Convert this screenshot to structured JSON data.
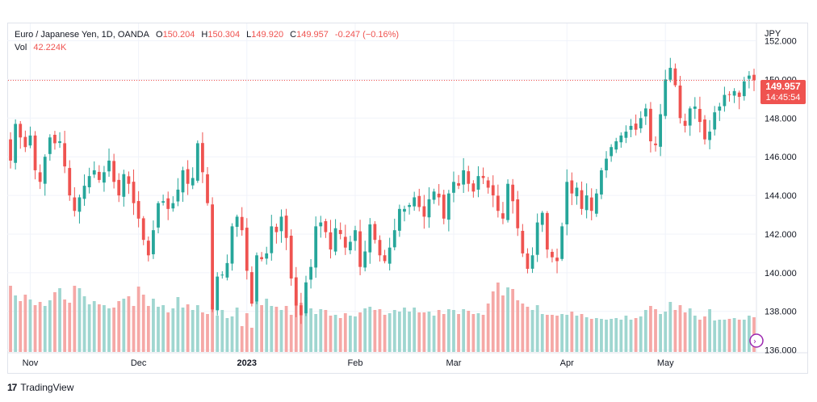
{
  "legend": {
    "symbol": "Euro / Japanese Yen, 1D, OANDA",
    "open_label": "O",
    "open": "150.204",
    "high_label": "H",
    "high": "150.304",
    "low_label": "L",
    "low": "149.920",
    "close_label": "C",
    "close": "149.957",
    "change": "-0.247 (−0.16%)",
    "vol_label": "Vol",
    "vol": "42.224K"
  },
  "currency": "JPY",
  "last_price": "149.957",
  "countdown": "14:45:54",
  "footer": {
    "brand": "TradingView"
  },
  "colors": {
    "up": "#26a69a",
    "down": "#ef5350",
    "vol_up": "#9fd6d0",
    "vol_down": "#f5a8a6"
  },
  "chart_data": {
    "type": "candlestick",
    "title": "Euro / Japanese Yen, 1D, OANDA",
    "y_tick_labels": [
      "136.000",
      "138.000",
      "140.000",
      "142.000",
      "144.000",
      "146.000",
      "148.000",
      "150.000",
      "152.000"
    ],
    "y_ticks": [
      136,
      138,
      140,
      142,
      144,
      146,
      148,
      150,
      152
    ],
    "ylim": [
      135.9,
      152.9
    ],
    "x_tick_labels": [
      {
        "label": "Nov",
        "date": "2022-11-01"
      },
      {
        "label": "Dec",
        "date": "2022-12-01"
      },
      {
        "label": "2023",
        "date": "2023-01-02"
      },
      {
        "label": "Feb",
        "date": "2023-02-01"
      },
      {
        "label": "Mar",
        "date": "2023-03-01"
      },
      {
        "label": "Apr",
        "date": "2023-04-03"
      },
      {
        "label": "May",
        "date": "2023-05-01"
      }
    ],
    "grid": true,
    "current_price_line": 149.957,
    "close": [
      145.8,
      147.7,
      147.0,
      146.5,
      147.1,
      145.3,
      144.7,
      146.0,
      147.0,
      146.7,
      146.8,
      145.5,
      144.0,
      143.2,
      143.9,
      144.5,
      145.0,
      145.3,
      144.8,
      145.2,
      145.8,
      144.7,
      144.0,
      145.1,
      144.6,
      143.6,
      142.8,
      141.7,
      140.9,
      142.2,
      143.6,
      143.7,
      143.3,
      143.6,
      144.3,
      145.3,
      144.6,
      144.9,
      146.7,
      145.2,
      143.6,
      138.1,
      139.8,
      139.9,
      140.5,
      142.4,
      142.9,
      142.2,
      140.1,
      138.4,
      140.9,
      140.7,
      141.0,
      142.4,
      142.1,
      142.9,
      141.8,
      139.7,
      138.3,
      137.8,
      139.5,
      140.3,
      142.4,
      142.6,
      142.1,
      141.2,
      142.3,
      142.0,
      141.3,
      141.6,
      142.2,
      140.3,
      141.1,
      142.5,
      141.7,
      140.9,
      140.6,
      141.3,
      142.2,
      143.3,
      143.3,
      143.5,
      143.9,
      143.4,
      142.9,
      143.8,
      144.2,
      143.9,
      142.8,
      144.1,
      144.7,
      144.5,
      145.3,
      144.6,
      144.2,
      145.0,
      144.9,
      144.4,
      144.0,
      143.2,
      142.8,
      144.6,
      143.7,
      142.3,
      141.0,
      140.2,
      140.9,
      142.6,
      143.1,
      141.2,
      140.8,
      140.6,
      142.4,
      144.7,
      144.1,
      144.4,
      143.3,
      144.0,
      143.2,
      144.1,
      145.3,
      145.9,
      146.5,
      146.8,
      147.1,
      147.3,
      147.6,
      147.4,
      148.0,
      148.5,
      146.8,
      146.6,
      148.2,
      150.0,
      150.6,
      149.7,
      148.0,
      147.6,
      148.5,
      148.6,
      147.8,
      146.9,
      147.3,
      148.3,
      148.6,
      149.2,
      149.2,
      149.4,
      149.1,
      149.9,
      150.2,
      149.957
    ],
    "volume_relative": [
      0.82,
      0.7,
      0.63,
      0.71,
      0.65,
      0.58,
      0.62,
      0.57,
      0.64,
      0.74,
      0.79,
      0.65,
      0.61,
      0.82,
      0.79,
      0.69,
      0.59,
      0.63,
      0.59,
      0.58,
      0.54,
      0.55,
      0.63,
      0.66,
      0.69,
      0.57,
      0.81,
      0.71,
      0.57,
      0.66,
      0.56,
      0.58,
      0.49,
      0.54,
      0.68,
      0.55,
      0.59,
      0.52,
      0.58,
      0.49,
      0.47,
      0.59,
      0.45,
      0.52,
      0.42,
      0.44,
      0.55,
      0.32,
      0.48,
      0.3,
      0.63,
      0.58,
      0.66,
      0.57,
      0.56,
      0.52,
      0.57,
      0.46,
      0.77,
      0.61,
      0.68,
      0.54,
      0.47,
      0.53,
      0.52,
      0.45,
      0.46,
      0.42,
      0.48,
      0.45,
      0.44,
      0.49,
      0.54,
      0.56,
      0.52,
      0.53,
      0.46,
      0.48,
      0.52,
      0.5,
      0.55,
      0.5,
      0.55,
      0.49,
      0.49,
      0.5,
      0.45,
      0.52,
      0.47,
      0.53,
      0.52,
      0.47,
      0.53,
      0.51,
      0.47,
      0.48,
      0.46,
      0.6,
      0.75,
      0.86,
      0.7,
      0.8,
      0.78,
      0.64,
      0.6,
      0.56,
      0.52,
      0.58,
      0.47,
      0.46,
      0.46,
      0.45,
      0.47,
      0.46,
      0.5,
      0.45,
      0.47,
      0.43,
      0.41,
      0.42,
      0.41,
      0.4,
      0.41,
      0.42,
      0.4,
      0.45,
      0.4,
      0.42,
      0.44,
      0.52,
      0.57,
      0.53,
      0.47,
      0.5,
      0.62,
      0.52,
      0.58,
      0.49,
      0.54,
      0.45,
      0.4,
      0.44,
      0.53,
      0.39,
      0.4,
      0.4,
      0.41,
      0.42,
      0.4,
      0.4,
      0.45,
      0.43
    ]
  }
}
